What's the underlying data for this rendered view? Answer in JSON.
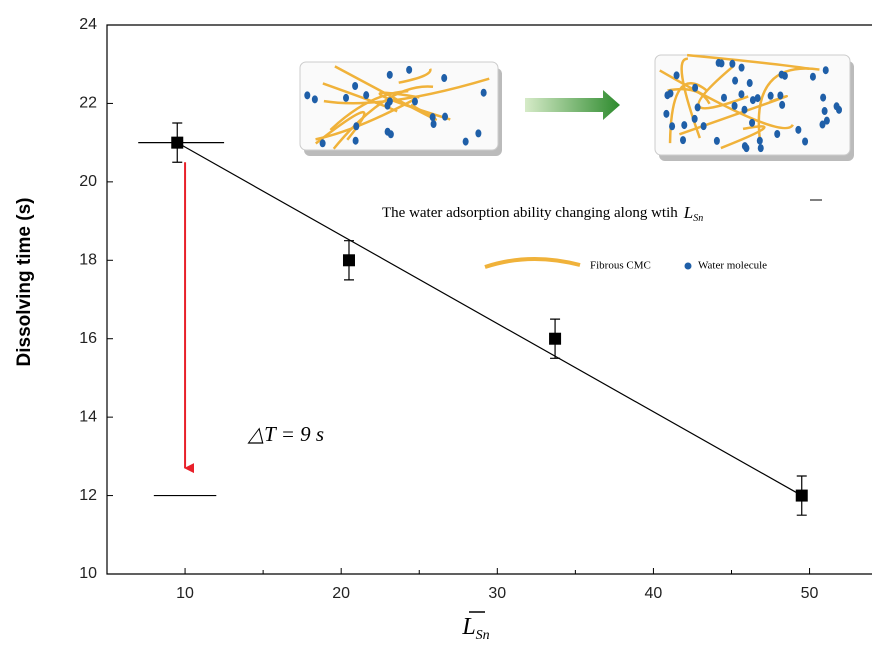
{
  "chart_data": {
    "type": "scatter",
    "y_label": "Dissolving time (s)",
    "x_label": "L",
    "x_label_sub": "Sn",
    "x": [
      9.5,
      20.5,
      33.7,
      49.5
    ],
    "values": [
      21,
      18,
      16,
      12
    ],
    "errors": [
      0.5,
      0.5,
      0.5,
      0.5
    ],
    "color": "#000000",
    "fit": {
      "x": [
        9.5,
        49.5
      ],
      "y": [
        21,
        12
      ],
      "color": "#000000"
    },
    "ref_lines": [
      {
        "x": [
          7,
          12.5
        ],
        "y": 21
      },
      {
        "x": [
          8,
          12
        ],
        "y": 12
      }
    ],
    "arrow": {
      "x": 10,
      "y": [
        20.5,
        12.7
      ],
      "color": "#e8202a"
    },
    "annotation": "△T = 9 s",
    "inset_caption": "The water adsorption ability changing along wtih",
    "inset_caption_symbol": "L",
    "inset_caption_sub": "Sn",
    "inset_legend": [
      {
        "name": "Fibrous CMC",
        "color": "#f0b23a"
      },
      {
        "name": "Water molecule",
        "color": "#1f5fa8"
      }
    ],
    "xlim": [
      5,
      54
    ],
    "ylim": [
      10,
      24
    ],
    "xticks": [
      10,
      20,
      30,
      40,
      50
    ],
    "xminor_ticks": [
      15,
      25,
      35,
      45
    ],
    "yticks": [
      10,
      12,
      14,
      16,
      18,
      20,
      22,
      24
    ]
  }
}
